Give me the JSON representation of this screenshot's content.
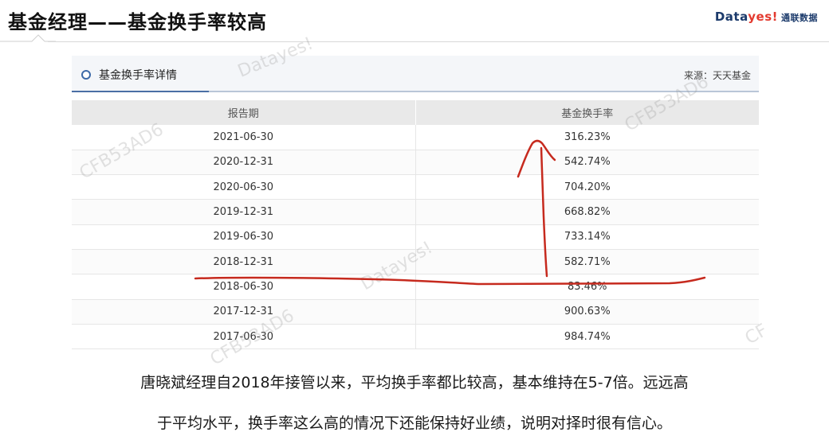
{
  "slide": {
    "title": "基金经理——基金换手率较高",
    "brand_main_a": "Data",
    "brand_main_b": "yes!",
    "brand_cn": "通联数据"
  },
  "panel": {
    "title": "基金换手率详情",
    "source": "来源：天天基金",
    "columns": [
      "报告期",
      "基金换手率"
    ],
    "rows": [
      {
        "date": "2021-06-30",
        "rate": "316.23%"
      },
      {
        "date": "2020-12-31",
        "rate": "542.74%"
      },
      {
        "date": "2020-06-30",
        "rate": "704.20%"
      },
      {
        "date": "2019-12-31",
        "rate": "668.82%"
      },
      {
        "date": "2019-06-30",
        "rate": "733.14%"
      },
      {
        "date": "2018-12-31",
        "rate": "582.71%"
      },
      {
        "date": "2018-06-30",
        "rate": "83.46%"
      },
      {
        "date": "2017-12-31",
        "rate": "900.63%"
      },
      {
        "date": "2017-06-30",
        "rate": "984.74%"
      }
    ]
  },
  "watermarks": [
    "Datayes!",
    "CFB53AD6",
    "CFB53AD6",
    "Datayes!",
    "CFB53AD6",
    "CF"
  ],
  "caption": {
    "line1": "唐晓斌经理自2018年接管以来，平均换手率都比较高，基本维持在5-7倍。远远高",
    "line2": "于平均水平，换手率这么高的情况下还能保持好业绩，说明对择时很有信心。"
  },
  "colors": {
    "annotation_red": "#c62a1e",
    "brand_navy": "#1b3a6b",
    "brand_red": "#e33a2f",
    "header_accent": "#4a6fa5"
  }
}
